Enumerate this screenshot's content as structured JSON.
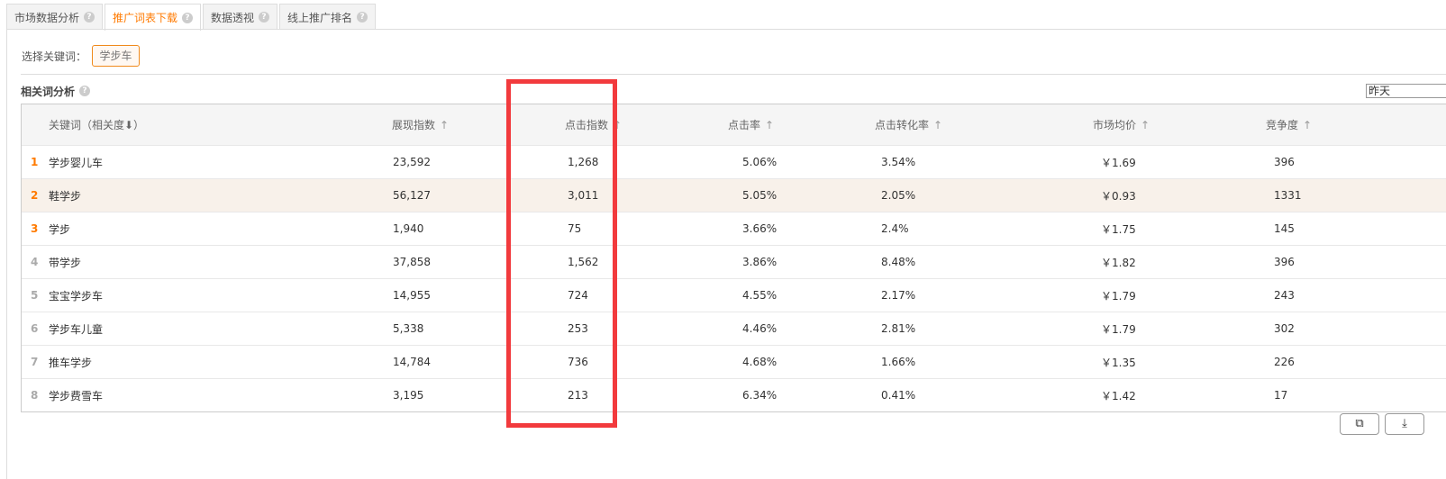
{
  "tabs": [
    {
      "label": "市场数据分析",
      "active": false
    },
    {
      "label": "推广词表下载",
      "active": true
    },
    {
      "label": "数据透视",
      "active": false
    },
    {
      "label": "线上推广排名",
      "active": false
    }
  ],
  "keyword_select": {
    "label": "选择关键词：",
    "selected": "学步车"
  },
  "section": {
    "title": "相关词分析",
    "period": "昨天"
  },
  "columns": [
    "关键词（相关度⬇）",
    "展现指数",
    "点击指数",
    "点击率",
    "点击转化率",
    "市场均价",
    "竞争度"
  ],
  "rows": [
    {
      "rank": "1",
      "keyword": "学步婴儿车",
      "impressions": "23,592",
      "clicks": "1,268",
      "ctr": "5.06%",
      "cvr": "3.54%",
      "price": "￥1.69",
      "competition": "396"
    },
    {
      "rank": "2",
      "keyword": "鞋学步",
      "impressions": "56,127",
      "clicks": "3,011",
      "ctr": "5.05%",
      "cvr": "2.05%",
      "price": "￥0.93",
      "competition": "1331"
    },
    {
      "rank": "3",
      "keyword": "学步",
      "impressions": "1,940",
      "clicks": "75",
      "ctr": "3.66%",
      "cvr": "2.4%",
      "price": "￥1.75",
      "competition": "145"
    },
    {
      "rank": "4",
      "keyword": "带学步",
      "impressions": "37,858",
      "clicks": "1,562",
      "ctr": "3.86%",
      "cvr": "8.48%",
      "price": "￥1.82",
      "competition": "396"
    },
    {
      "rank": "5",
      "keyword": "宝宝学步车",
      "impressions": "14,955",
      "clicks": "724",
      "ctr": "4.55%",
      "cvr": "2.17%",
      "price": "￥1.79",
      "competition": "243"
    },
    {
      "rank": "6",
      "keyword": "学步车儿童",
      "impressions": "5,338",
      "clicks": "253",
      "ctr": "4.46%",
      "cvr": "2.81%",
      "price": "￥1.79",
      "competition": "302"
    },
    {
      "rank": "7",
      "keyword": "推车学步",
      "impressions": "14,784",
      "clicks": "736",
      "ctr": "4.68%",
      "cvr": "1.66%",
      "price": "￥1.35",
      "competition": "226"
    },
    {
      "rank": "8",
      "keyword": "学步费雪车",
      "impressions": "3,195",
      "clicks": "213",
      "ctr": "6.34%",
      "cvr": "0.41%",
      "price": "￥1.42",
      "competition": "17"
    }
  ],
  "colors": {
    "accent": "#ff7a00",
    "highlight_row": "#f8f1ea",
    "annotation": "#f23a3d"
  },
  "icons": {
    "help": "question-circle-icon",
    "sort": "arrow-up-icon",
    "copy": "copy-icon",
    "download": "download-icon"
  }
}
